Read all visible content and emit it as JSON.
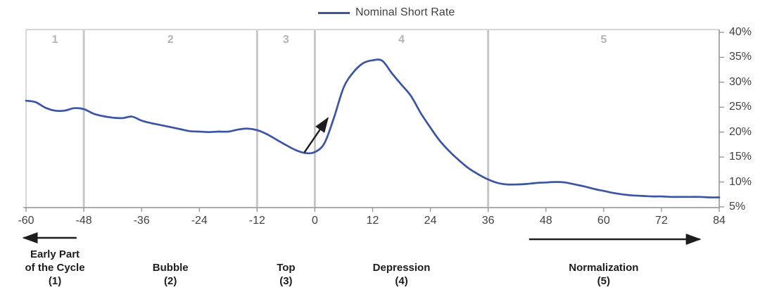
{
  "legend": {
    "label": "Nominal Short Rate"
  },
  "colors": {
    "line": "#3b54a5",
    "axis": "#8f9196",
    "border": "#c9cacd",
    "divider": "#c6c7c9",
    "phase_number": "#b3b4b8",
    "tick_text": "#3f4146",
    "phase_text": "#1d1d1f",
    "arrow": "#1d1d1f"
  },
  "chart_data": {
    "type": "line",
    "title": "",
    "legend": [
      "Nominal Short Rate"
    ],
    "legend_position": "top-center",
    "x_unit": "months relative to cycle top",
    "xlim": [
      -60,
      84
    ],
    "ylim": [
      5,
      40
    ],
    "grid": false,
    "x_ticks": [
      -60,
      -48,
      -36,
      -24,
      -12,
      0,
      12,
      24,
      36,
      48,
      60,
      72,
      84
    ],
    "y_ticks": [
      40,
      35,
      30,
      25,
      20,
      15,
      10,
      5
    ],
    "y_tick_suffix": "%",
    "y_axis_side": "right",
    "series": [
      {
        "name": "Nominal Short Rate",
        "color": "#3b54a5",
        "points": [
          [
            -60,
            26.3
          ],
          [
            -58,
            26.0
          ],
          [
            -56,
            24.9
          ],
          [
            -54,
            24.3
          ],
          [
            -52,
            24.3
          ],
          [
            -50,
            24.8
          ],
          [
            -48,
            24.6
          ],
          [
            -46,
            23.7
          ],
          [
            -44,
            23.2
          ],
          [
            -42,
            22.9
          ],
          [
            -40,
            22.8
          ],
          [
            -38,
            23.1
          ],
          [
            -36,
            22.3
          ],
          [
            -34,
            21.8
          ],
          [
            -32,
            21.4
          ],
          [
            -30,
            21.0
          ],
          [
            -28,
            20.6
          ],
          [
            -26,
            20.2
          ],
          [
            -24,
            20.1
          ],
          [
            -22,
            20.0
          ],
          [
            -20,
            20.1
          ],
          [
            -18,
            20.1
          ],
          [
            -16,
            20.5
          ],
          [
            -14,
            20.7
          ],
          [
            -12,
            20.4
          ],
          [
            -10,
            19.6
          ],
          [
            -8,
            18.5
          ],
          [
            -6,
            17.4
          ],
          [
            -4,
            16.4
          ],
          [
            -2,
            15.8
          ],
          [
            0,
            16.0
          ],
          [
            2,
            17.8
          ],
          [
            4,
            23.0
          ],
          [
            6,
            29.0
          ],
          [
            8,
            32.0
          ],
          [
            10,
            33.8
          ],
          [
            12,
            34.4
          ],
          [
            14,
            34.3
          ],
          [
            16,
            31.8
          ],
          [
            18,
            29.5
          ],
          [
            20,
            27.2
          ],
          [
            22,
            23.8
          ],
          [
            24,
            20.9
          ],
          [
            26,
            18.2
          ],
          [
            28,
            16.1
          ],
          [
            30,
            14.3
          ],
          [
            32,
            12.7
          ],
          [
            34,
            11.5
          ],
          [
            36,
            10.5
          ],
          [
            38,
            9.8
          ],
          [
            40,
            9.5
          ],
          [
            42,
            9.5
          ],
          [
            44,
            9.6
          ],
          [
            46,
            9.8
          ],
          [
            48,
            9.9
          ],
          [
            50,
            10.0
          ],
          [
            52,
            9.9
          ],
          [
            54,
            9.5
          ],
          [
            56,
            9.1
          ],
          [
            58,
            8.6
          ],
          [
            60,
            8.2
          ],
          [
            62,
            7.8
          ],
          [
            64,
            7.5
          ],
          [
            66,
            7.3
          ],
          [
            68,
            7.2
          ],
          [
            70,
            7.1
          ],
          [
            72,
            7.1
          ],
          [
            74,
            7.0
          ],
          [
            76,
            7.0
          ],
          [
            78,
            7.0
          ],
          [
            80,
            7.0
          ],
          [
            82,
            6.9
          ],
          [
            84,
            6.9
          ]
        ]
      }
    ],
    "phases": [
      {
        "number": "1",
        "lines": [
          "Early Part",
          "of the Cycle"
        ],
        "tag": "(1)",
        "start_month": -60,
        "end_month": -48
      },
      {
        "number": "2",
        "lines": [
          "Bubble"
        ],
        "tag": "(2)",
        "start_month": -48,
        "end_month": -12
      },
      {
        "number": "3",
        "lines": [
          "Top"
        ],
        "tag": "(3)",
        "start_month": -12,
        "end_month": 0
      },
      {
        "number": "4",
        "lines": [
          "Depression"
        ],
        "tag": "(4)",
        "start_month": 0,
        "end_month": 36
      },
      {
        "number": "5",
        "lines": [
          "Normalization"
        ],
        "tag": "(5)",
        "start_month": 36,
        "end_month": 84
      }
    ],
    "annotations": {
      "rise_arrow": {
        "from": {
          "month": -2.2,
          "value": 15.9
        },
        "to": {
          "month": 2.7,
          "value": 22.8
        }
      },
      "early_cycle_arrow": {
        "direction": "left",
        "from_month": -49.5,
        "to_month": -60.5
      },
      "normalization_arrow": {
        "direction": "right",
        "from_month": 44.5,
        "to_month": 80
      }
    }
  }
}
